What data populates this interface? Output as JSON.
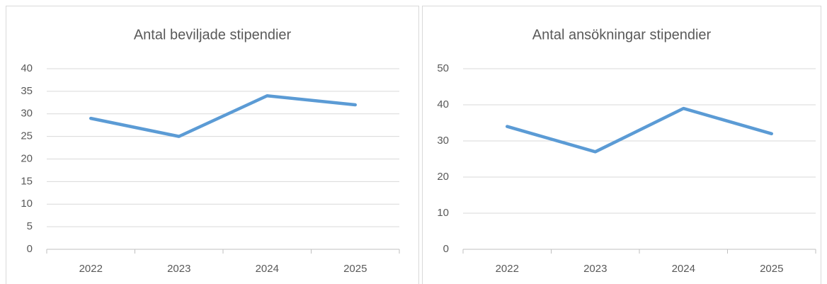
{
  "chart_data": [
    {
      "type": "line",
      "title": "Antal beviljade stipendier",
      "categories": [
        "2022",
        "2023",
        "2024",
        "2025"
      ],
      "series": [
        {
          "name": "Antal beviljade stipendier",
          "color": "#5b9bd5",
          "values": [
            29,
            25,
            34,
            32
          ]
        }
      ],
      "ylim": [
        0,
        40
      ],
      "yticks": [
        0,
        5,
        10,
        15,
        20,
        25,
        30,
        35,
        40
      ],
      "grid": true
    },
    {
      "type": "line",
      "title": "Antal ansökningar stipendier",
      "categories": [
        "2022",
        "2023",
        "2024",
        "2025"
      ],
      "series": [
        {
          "name": "Antal ansökningar stipendier",
          "color": "#5b9bd5",
          "values": [
            34,
            27,
            39,
            32
          ]
        }
      ],
      "ylim": [
        0,
        50
      ],
      "yticks": [
        0,
        10,
        20,
        30,
        40,
        50
      ],
      "grid": true
    }
  ]
}
